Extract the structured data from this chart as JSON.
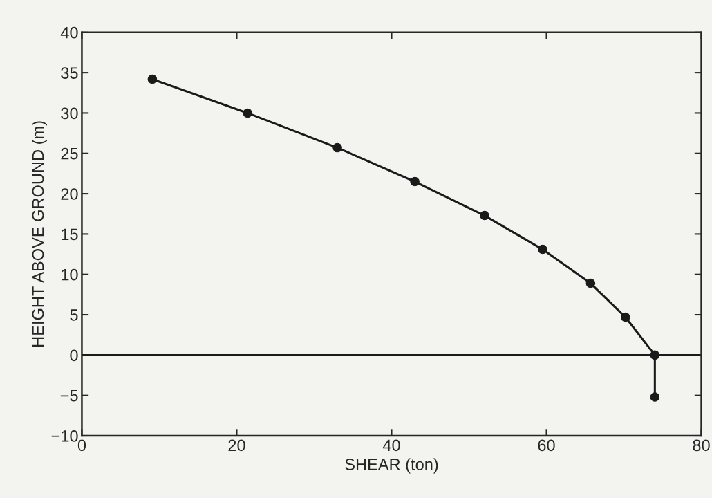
{
  "chart_data": {
    "type": "line",
    "xlabel": "SHEAR (ton)",
    "ylabel": "HEIGHT ABOVE GROUND (m)",
    "series": [
      {
        "color": "#1a1a1a",
        "x": [
          9.1,
          21.4,
          33.0,
          43.0,
          52.0,
          59.5,
          65.7,
          70.2,
          74.0,
          74.0
        ],
        "values": [
          34.2,
          30.0,
          25.7,
          21.5,
          17.3,
          13.1,
          8.9,
          4.7,
          0.0,
          -5.2
        ]
      }
    ],
    "xlim": [
      0,
      80
    ],
    "xticks": [
      0,
      20,
      40,
      60,
      80
    ],
    "ylim": [
      -10,
      40
    ],
    "yticks": [
      {
        "value": -10,
        "label": "−10"
      },
      {
        "value": -5,
        "label": "−5"
      },
      0,
      5,
      10,
      15,
      20,
      25,
      30,
      35,
      40
    ],
    "ref_lines": [
      {
        "axis": "y",
        "value": 0,
        "color": "#1a1a1a"
      }
    ],
    "marker": "circle",
    "line_style": "solid",
    "grid": false,
    "legend": false
  }
}
